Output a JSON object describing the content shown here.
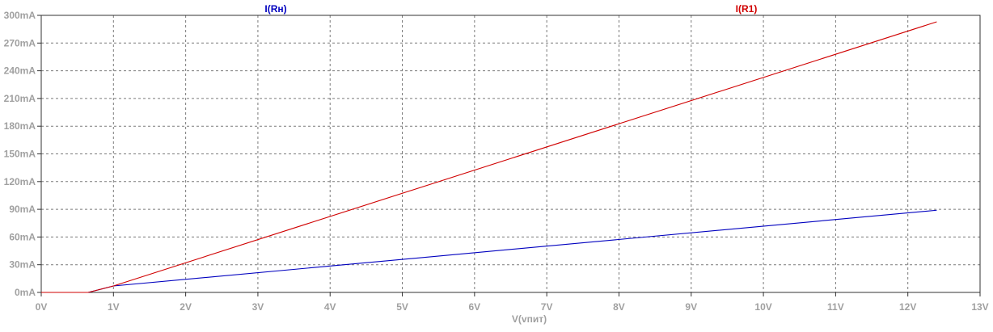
{
  "chart_data": {
    "type": "line",
    "xlabel": "V(vпит)",
    "xlim": [
      0,
      13
    ],
    "ylim": [
      0,
      300
    ],
    "x_ticks": [
      0,
      1,
      2,
      3,
      4,
      5,
      6,
      7,
      8,
      9,
      10,
      11,
      12,
      13
    ],
    "x_tick_labels": [
      "0V",
      "1V",
      "2V",
      "3V",
      "4V",
      "5V",
      "6V",
      "7V",
      "8V",
      "9V",
      "10V",
      "11V",
      "12V",
      "13V"
    ],
    "y_ticks": [
      0,
      30,
      60,
      90,
      120,
      150,
      180,
      210,
      240,
      270,
      300
    ],
    "y_tick_labels": [
      "0mA",
      "30mA",
      "60mA",
      "90mA",
      "120mA",
      "150mA",
      "180mA",
      "210mA",
      "240mA",
      "270mA",
      "300mA"
    ],
    "grid": true,
    "legend": "top",
    "series": [
      {
        "name": "I(Rн)",
        "color": "#0000bf",
        "x": [
          0,
          0.65,
          1.0,
          12.4
        ],
        "y": [
          0,
          0,
          7,
          89
        ]
      },
      {
        "name": "I(R1)",
        "color": "#d00000",
        "x": [
          0,
          0.65,
          1.0,
          12.4
        ],
        "y": [
          0,
          0,
          7,
          293
        ]
      }
    ]
  },
  "colors": {
    "grid": "#7a7a7a",
    "axis_text": "#a0a0a0",
    "frame": "#333333"
  }
}
